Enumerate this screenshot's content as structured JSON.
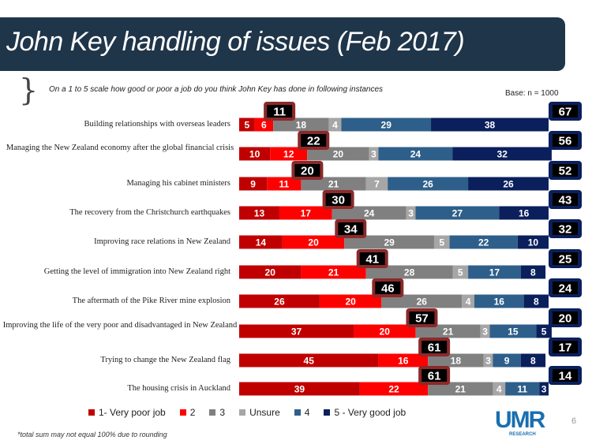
{
  "header": {
    "title": "John Key handling of issues (Feb 2017)",
    "subtitle": "On a 1 to 5 scale how good or poor a job do you think John Key has done in following instances",
    "base": "Base: n = 1000"
  },
  "footnote": "*total sum may not equal 100% due to rounding",
  "logo": {
    "name": "UMR",
    "sub": "RESEARCH"
  },
  "page_number": "6",
  "chart_data": {
    "type": "bar",
    "orientation": "horizontal",
    "stacked": true,
    "xlim": [
      0,
      100
    ],
    "categories": [
      "Building relationships with overseas leaders",
      "Managing the New Zealand economy after the global financial crisis",
      "Managing his cabinet ministers",
      "The recovery from  the Christchurch earthquakes",
      "Improving race relations in New Zealand",
      "Getting the level of immigration into New Zealand right",
      "The aftermath of the Pike River mine explosion",
      "Improving the life of the very poor and disadvantaged in New Zealand",
      "Trying to change the New Zealand flag",
      "The housing crisis in Auckland"
    ],
    "series": [
      {
        "name": "1- Very poor job",
        "color": "#c00000",
        "values": [
          5,
          10,
          9,
          13,
          14,
          20,
          26,
          37,
          45,
          39
        ]
      },
      {
        "name": "2",
        "color": "#ff0000",
        "values": [
          6,
          12,
          11,
          17,
          20,
          21,
          20,
          20,
          16,
          22
        ]
      },
      {
        "name": "3",
        "color": "#808080",
        "values": [
          18,
          20,
          21,
          24,
          29,
          28,
          26,
          21,
          18,
          21
        ]
      },
      {
        "name": "Unsure",
        "color": "#a6a6a6",
        "values": [
          4,
          3,
          7,
          3,
          5,
          5,
          4,
          3,
          3,
          4
        ]
      },
      {
        "name": "4",
        "color": "#2e5f8a",
        "values": [
          29,
          24,
          26,
          27,
          22,
          17,
          16,
          15,
          9,
          11
        ]
      },
      {
        "name": "5 - Very good job",
        "color": "#0a1f5c",
        "values": [
          38,
          32,
          26,
          16,
          10,
          8,
          8,
          5,
          8,
          3
        ]
      }
    ],
    "net_poor": [
      11,
      22,
      20,
      30,
      34,
      41,
      46,
      57,
      61,
      61
    ],
    "net_good": [
      67,
      56,
      52,
      43,
      32,
      25,
      24,
      20,
      17,
      14
    ],
    "legend_position": "bottom"
  }
}
